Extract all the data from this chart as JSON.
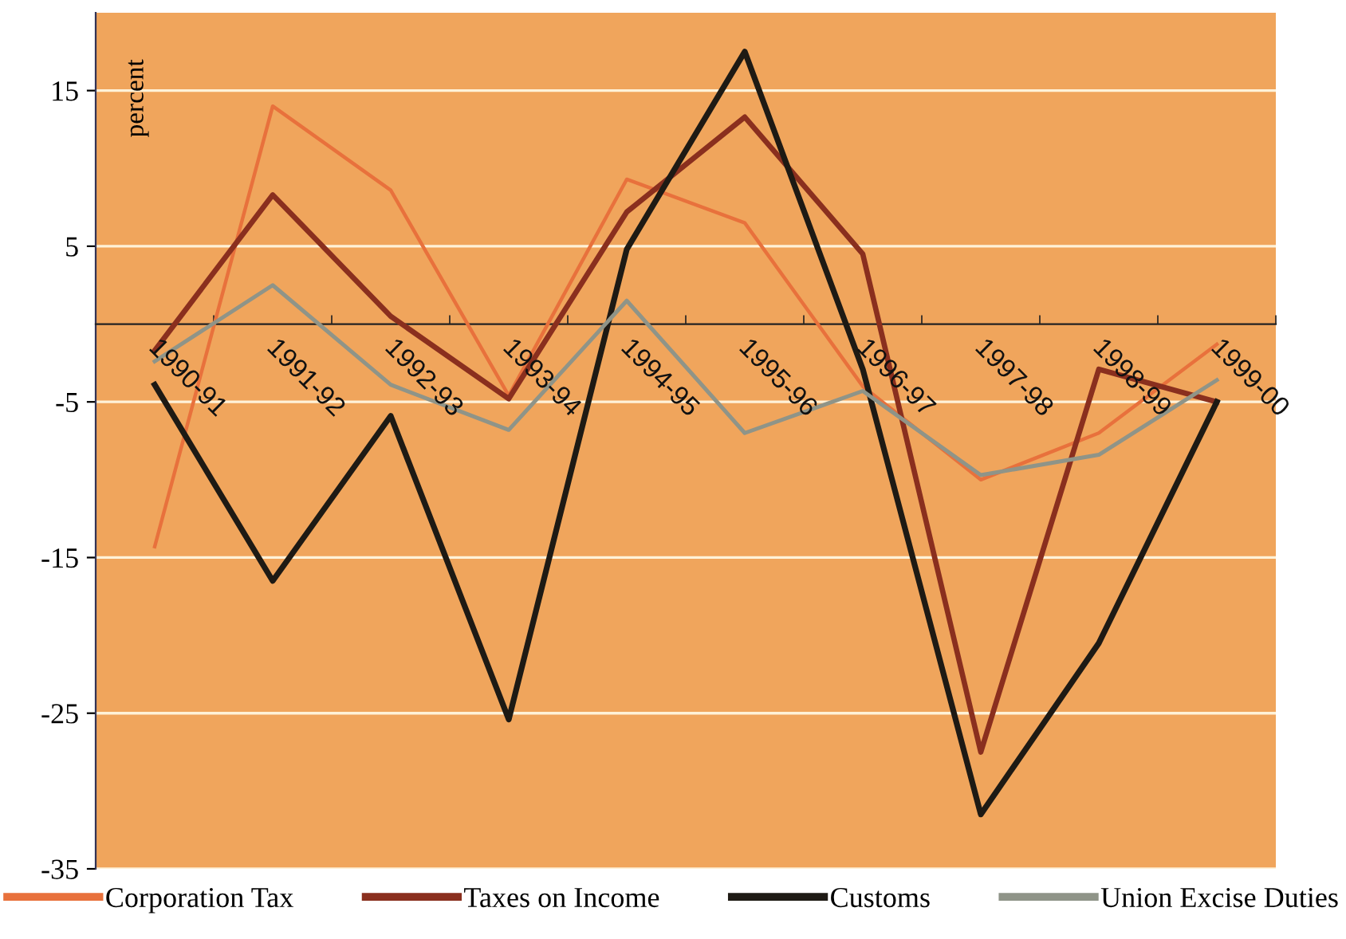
{
  "chart_data": {
    "type": "line",
    "ylabel": "percent",
    "categories": [
      "1990-91",
      "1991-92",
      "1992-93",
      "1993-94",
      "1994-95",
      "1995-96",
      "1996-97",
      "1997-98",
      "1998-99",
      "1999-00"
    ],
    "series": [
      {
        "name": "Corporation Tax",
        "color": "#e8713c",
        "values": [
          -14.3,
          14,
          8.6,
          -4.6,
          9.3,
          6.5,
          -4,
          -10,
          -7,
          -1.3
        ]
      },
      {
        "name": "Taxes on Income",
        "color": "#8a2f1e",
        "values": [
          -1.7,
          8.3,
          0.5,
          -4.8,
          7.2,
          13.3,
          4.5,
          -27.5,
          -2.9,
          -5
        ]
      },
      {
        "name": "Customs",
        "color": "#1e1a14",
        "values": [
          -3.9,
          -16.5,
          -5.9,
          -25.4,
          4.8,
          17.5,
          -2.9,
          -31.5,
          -20.5,
          -5
        ]
      },
      {
        "name": "Union Excise Duties",
        "color": "#8f9488",
        "values": [
          -2.4,
          2.5,
          -3.9,
          -6.8,
          1.5,
          -7,
          -4.3,
          -9.7,
          -8.4,
          -3.6
        ]
      }
    ],
    "ylim": [
      -35,
      20
    ],
    "yticks": [
      15,
      5,
      -5,
      -15,
      -25,
      -35
    ],
    "grid": "y",
    "legend": "bottom",
    "marker": "none",
    "line_style": "solid"
  }
}
